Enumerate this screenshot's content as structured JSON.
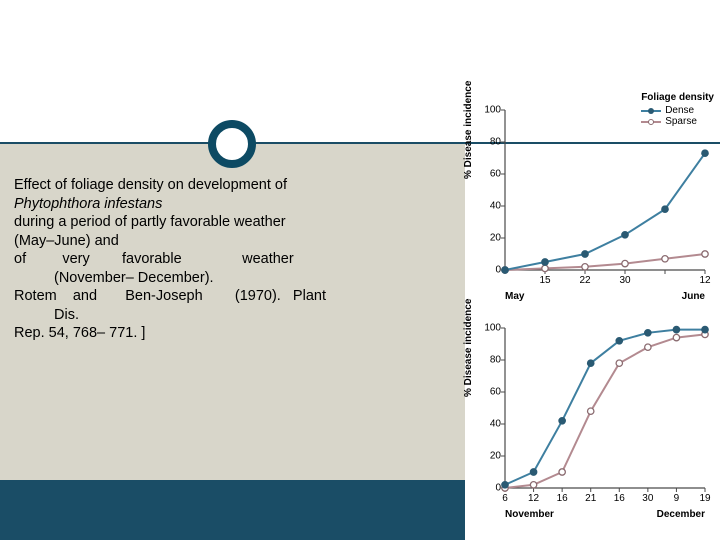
{
  "text": {
    "line1": "Effect of foliage density on development of",
    "species": "Phytophthora infestans",
    "line3": "during a period of partly favorable weather",
    "line4": "(May–June) and",
    "line5a": "of",
    "line5b": "very",
    "line5c": "favorable",
    "line5d": "weather",
    "line6": "(November– December).",
    "line7a": "Rotem",
    "line7b": "and",
    "line7c": "Ben-Joseph",
    "line7d": "(1970).",
    "line7e": "Plant",
    "line8": "Dis.",
    "line9": "Rep. 54, 768– 771. ]"
  },
  "legend": {
    "title": "Foliage density",
    "dense": "Dense",
    "sparse": "Sparse"
  },
  "ylabel": "% Disease incidence",
  "colors": {
    "dense_line": "#3e7fa0",
    "dense_marker": "#2a5a73",
    "sparse_line": "#b38a90",
    "sparse_marker_fill": "#ffffff",
    "sparse_marker_stroke": "#8a6b70",
    "axis": "#4a4a4a",
    "text": "#000000",
    "panel_bg": "#d8d6ca",
    "band": "#1a4d66"
  },
  "chart1": {
    "ylim": [
      0,
      100
    ],
    "yticks": [
      0,
      20,
      40,
      60,
      80,
      100
    ],
    "xn": 6,
    "xticks": [
      "",
      "15",
      "22",
      "30",
      "",
      "12"
    ],
    "month_left": "May",
    "month_right": "June",
    "dense": [
      0,
      5,
      10,
      22,
      38,
      73
    ],
    "sparse": [
      0,
      1,
      2,
      4,
      7,
      10
    ]
  },
  "chart2": {
    "ylim": [
      0,
      100
    ],
    "yticks": [
      0,
      20,
      40,
      60,
      80,
      100
    ],
    "xn": 8,
    "xticks": [
      "6",
      "12",
      "16",
      "21",
      "16",
      "30",
      "9",
      "19"
    ],
    "month_left": "November",
    "month_right": "December",
    "dense": [
      2,
      10,
      42,
      78,
      92,
      97,
      99,
      99
    ],
    "sparse": [
      0,
      2,
      10,
      48,
      78,
      88,
      94,
      96
    ]
  },
  "style": {
    "line_width": 2,
    "marker_r": 3.2
  }
}
